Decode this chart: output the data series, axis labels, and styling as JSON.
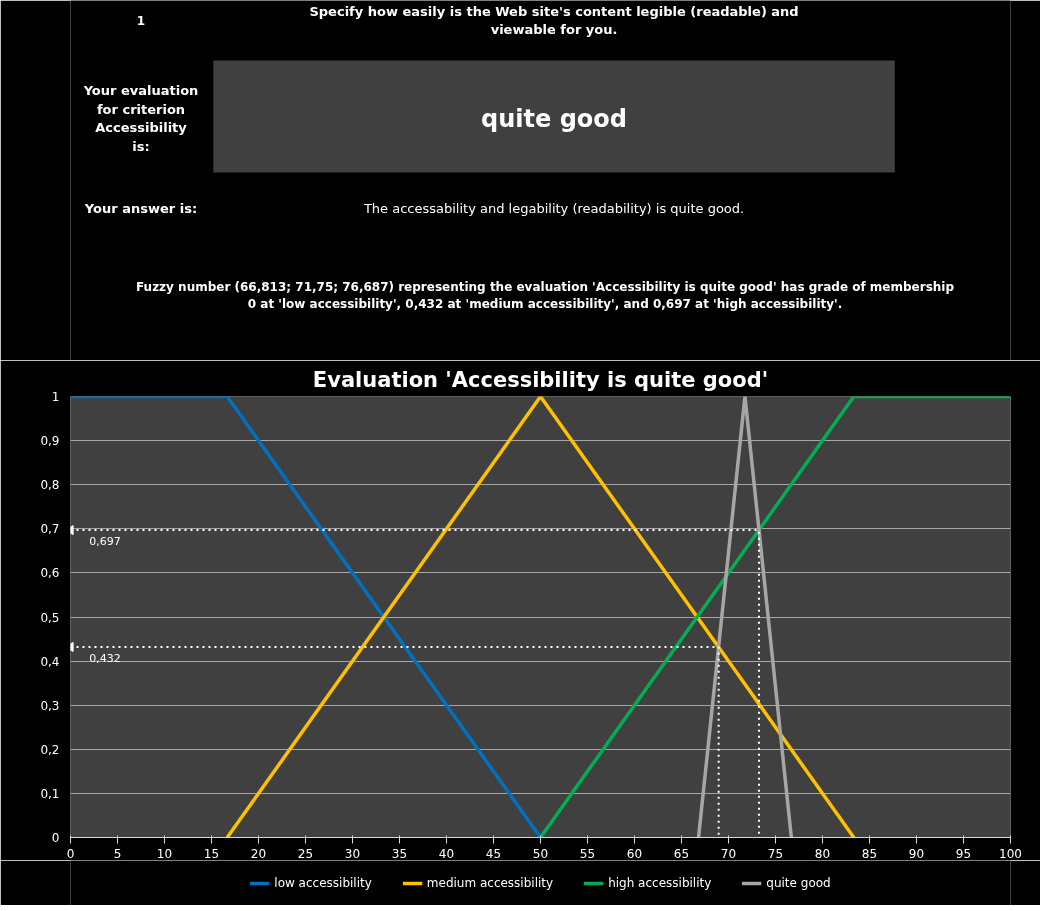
{
  "chart_data": {
    "type": "line",
    "title": "Evaluation 'Accessibility is quite good'",
    "annotations": [
      "1",
      "Specify how easily is the Web site's content legible (readable) and viewable for you.",
      "Your evaluation for criterion Accessibility is:",
      "quite good",
      "Your answer is:",
      "The accessability and legability (readability) is quite good.",
      "Fuzzy number (66,813; 71,75; 76,687) representing the evaluation 'Accessibility is quite good' has grade of membership 0 at 'low accessibility', 0,432 at 'medium accessibility', and 0,697 at 'high accessibility'.",
      {
        "text": "0,697",
        "x": 0,
        "y": 0.697
      },
      {
        "text": "0,432",
        "x": 0,
        "y": 0.432
      }
    ],
    "series": [
      {
        "name": "low accessibility",
        "color": "#0070c0",
        "x": [
          0,
          16.67,
          50
        ],
        "values": [
          1,
          1,
          0
        ]
      },
      {
        "name": "medium accessibility",
        "color": "#ffc000",
        "x": [
          16.67,
          50,
          83.33
        ],
        "values": [
          0,
          1,
          0
        ]
      },
      {
        "name": "high accessibility",
        "color": "#00b050",
        "x": [
          50,
          83.33,
          100
        ],
        "values": [
          0,
          1,
          1
        ]
      },
      {
        "name": "quite good",
        "color": "#a6a6a6",
        "x": [
          66.813,
          71.75,
          76.687
        ],
        "values": [
          0,
          1,
          0
        ]
      },
      {
        "color": "#ffffff",
        "line_style": "dotted",
        "x": [
          0,
          73.24,
          73.24
        ],
        "values": [
          0.697,
          0.697,
          0
        ]
      },
      {
        "color": "#ffffff",
        "line_style": "dotted",
        "x": [
          0,
          68.95,
          68.95
        ],
        "values": [
          0.432,
          0.432,
          0
        ]
      }
    ],
    "xlim": [
      0,
      100
    ],
    "xticks": [
      0,
      5,
      10,
      15,
      20,
      25,
      30,
      35,
      40,
      45,
      50,
      55,
      60,
      65,
      70,
      75,
      80,
      85,
      90,
      95,
      100
    ],
    "ylim": [
      0,
      1
    ],
    "yticks": [
      0,
      {
        "value": 0.1,
        "label": "0,1"
      },
      {
        "value": 0.2,
        "label": "0,2"
      },
      {
        "value": 0.3,
        "label": "0,3"
      },
      {
        "value": 0.4,
        "label": "0,4"
      },
      {
        "value": 0.5,
        "label": "0,5"
      },
      {
        "value": 0.6,
        "label": "0,6"
      },
      {
        "value": 0.7,
        "label": "0,7"
      },
      {
        "value": 0.8,
        "label": "0,8"
      },
      {
        "value": 0.9,
        "label": "0,9"
      },
      1
    ],
    "grid": "y",
    "legend": "bottom",
    "marker": "none",
    "line_style": "solid"
  }
}
